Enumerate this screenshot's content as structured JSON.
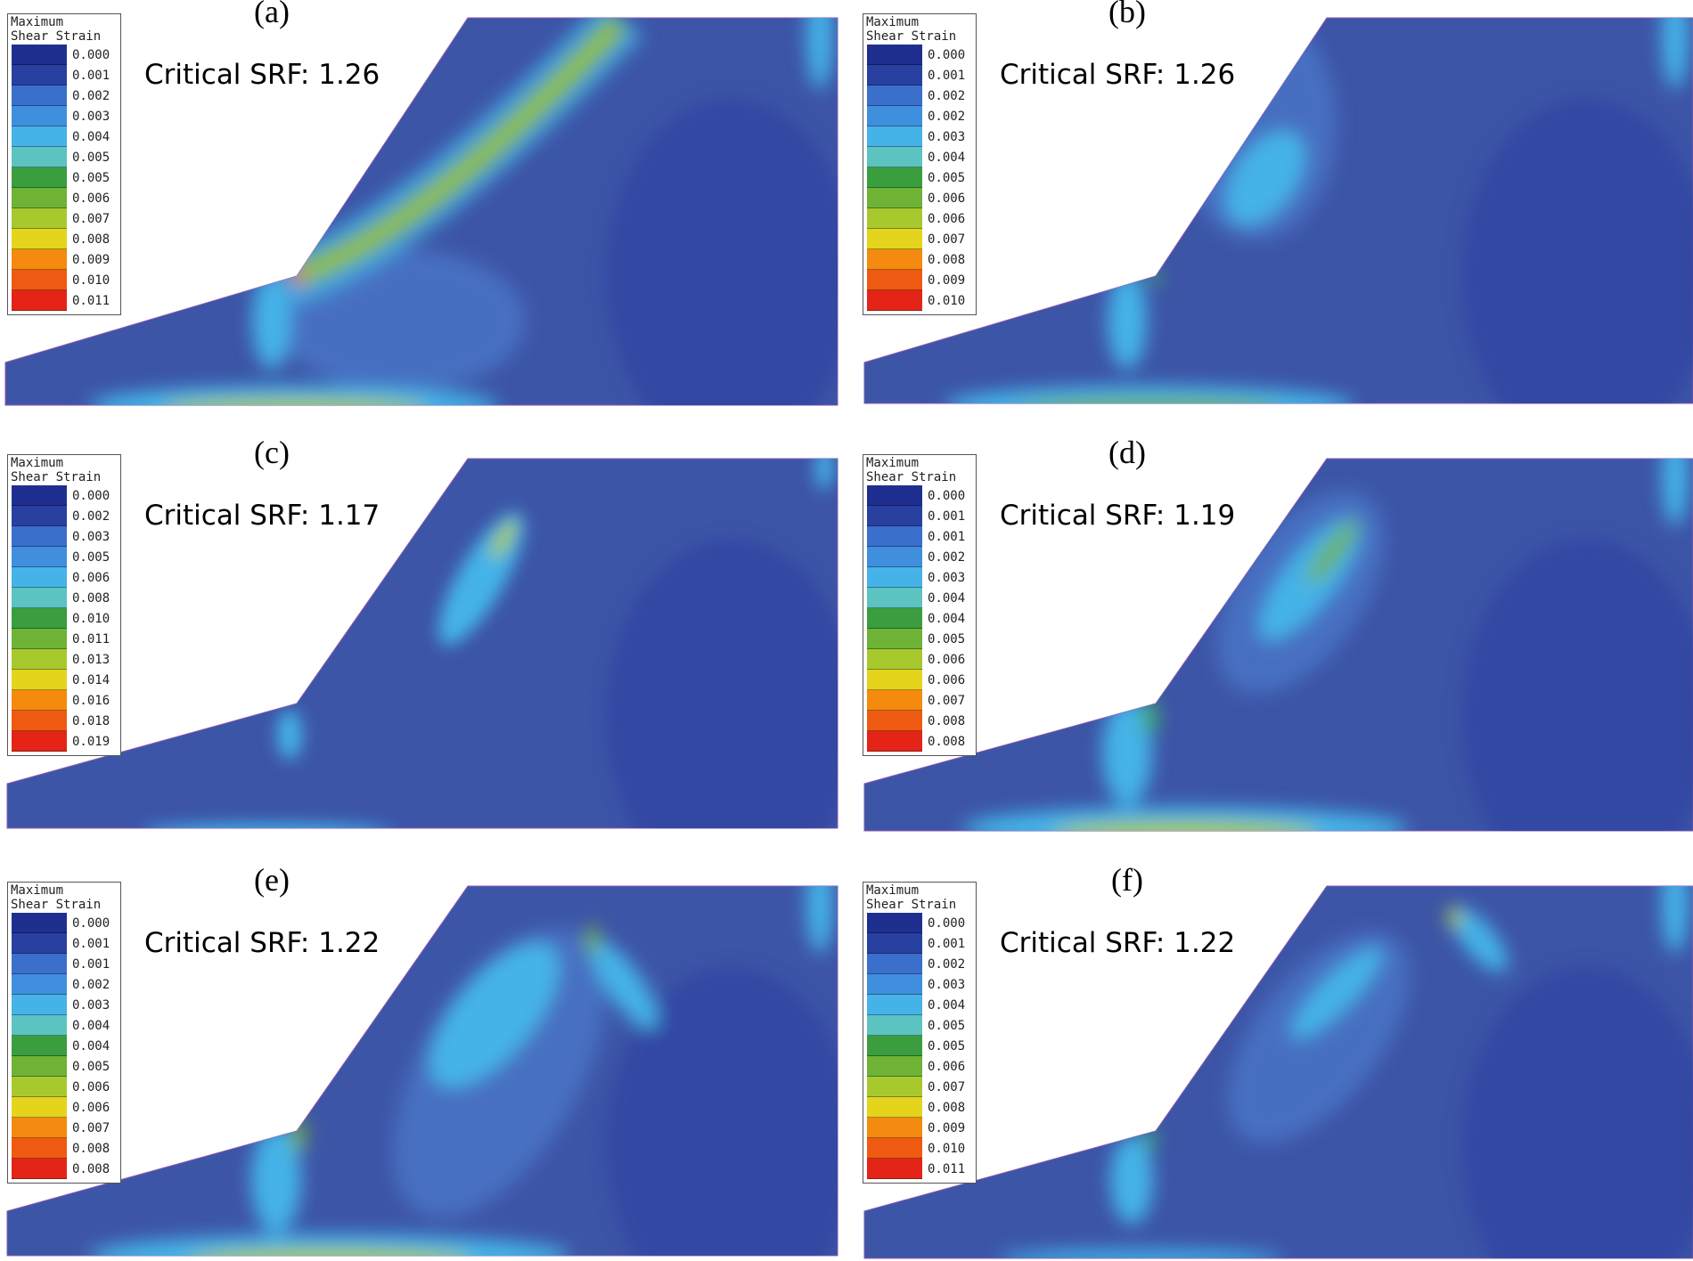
{
  "panels": [
    {
      "label": "(a)",
      "srf_text": "Critical SRF: 1.26",
      "legend_title": [
        "Maximum",
        "Shear Strain"
      ],
      "legend_values": [
        "0.000",
        "0.001",
        "0.002",
        "0.003",
        "0.004",
        "0.005",
        "0.005",
        "0.006",
        "0.007",
        "0.008",
        "0.009",
        "0.010",
        "0.011"
      ]
    },
    {
      "label": "(b)",
      "srf_text": "Critical SRF: 1.26",
      "legend_title": [
        "Maximum",
        "Shear Strain"
      ],
      "legend_values": [
        "0.000",
        "0.001",
        "0.002",
        "0.002",
        "0.003",
        "0.004",
        "0.005",
        "0.006",
        "0.006",
        "0.007",
        "0.008",
        "0.009",
        "0.010"
      ]
    },
    {
      "label": "(c)",
      "srf_text": "Critical SRF: 1.17",
      "legend_title": [
        "Maximum",
        "Shear Strain"
      ],
      "legend_values": [
        "0.000",
        "0.002",
        "0.003",
        "0.005",
        "0.006",
        "0.008",
        "0.010",
        "0.011",
        "0.013",
        "0.014",
        "0.016",
        "0.018",
        "0.019"
      ]
    },
    {
      "label": "(d)",
      "srf_text": "Critical SRF: 1.19",
      "legend_title": [
        "Maximum",
        "Shear Strain"
      ],
      "legend_values": [
        "0.000",
        "0.001",
        "0.001",
        "0.002",
        "0.003",
        "0.004",
        "0.004",
        "0.005",
        "0.006",
        "0.006",
        "0.007",
        "0.008",
        "0.008"
      ]
    },
    {
      "label": "(e)",
      "srf_text": "Critical SRF: 1.22",
      "legend_title": [
        "Maximum",
        "Shear Strain"
      ],
      "legend_values": [
        "0.000",
        "0.001",
        "0.001",
        "0.002",
        "0.003",
        "0.004",
        "0.004",
        "0.005",
        "0.006",
        "0.006",
        "0.007",
        "0.008",
        "0.008"
      ]
    },
    {
      "label": "(f)",
      "srf_text": "Critical SRF: 1.22",
      "legend_title": [
        "Maximum",
        "Shear Strain"
      ],
      "legend_values": [
        "0.000",
        "0.001",
        "0.002",
        "0.003",
        "0.004",
        "0.005",
        "0.005",
        "0.006",
        "0.007",
        "0.008",
        "0.009",
        "0.010",
        "0.011"
      ]
    }
  ],
  "colormap": [
    "#1f2f8f",
    "#2840a0",
    "#3551b4",
    "#3a6fcc",
    "#3f8fde",
    "#45b3e8",
    "#5cc3c0",
    "#3fae6e",
    "#3a9d3e",
    "#6fb336",
    "#a8c92e",
    "#e4d51c",
    "#f6c012",
    "#f48a10",
    "#ef5a12",
    "#e32417"
  ]
}
